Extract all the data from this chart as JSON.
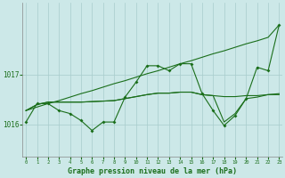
{
  "xlabel": "Graphe pression niveau de la mer (hPa)",
  "background_color": "#cce8e8",
  "line_color": "#1a6e1a",
  "grid_color": "#a8cccc",
  "x_values": [
    0,
    1,
    2,
    3,
    4,
    5,
    6,
    7,
    8,
    9,
    10,
    11,
    12,
    13,
    14,
    15,
    16,
    17,
    18,
    19,
    20,
    21,
    22,
    23
  ],
  "series_main": [
    1016.05,
    1016.42,
    1016.42,
    1016.28,
    1016.22,
    1016.08,
    1015.88,
    1016.05,
    1016.05,
    1016.55,
    1016.85,
    1017.18,
    1017.18,
    1017.08,
    1017.22,
    1017.22,
    1016.62,
    1016.28,
    1015.98,
    1016.18,
    1016.52,
    1017.15,
    1017.08,
    1018.0
  ],
  "series_trend": [
    1016.28,
    1016.35,
    1016.42,
    1016.48,
    1016.55,
    1016.62,
    1016.68,
    1016.75,
    1016.82,
    1016.88,
    1016.95,
    1017.02,
    1017.08,
    1017.15,
    1017.22,
    1017.28,
    1017.35,
    1017.42,
    1017.48,
    1017.55,
    1017.62,
    1017.68,
    1017.75,
    1018.0
  ],
  "series_smooth1": [
    1016.28,
    1016.4,
    1016.45,
    1016.45,
    1016.45,
    1016.45,
    1016.46,
    1016.47,
    1016.48,
    1016.52,
    1016.56,
    1016.6,
    1016.63,
    1016.63,
    1016.65,
    1016.65,
    1016.6,
    1016.58,
    1016.56,
    1016.56,
    1016.58,
    1016.58,
    1016.6,
    1016.6
  ],
  "series_smooth2": [
    1016.28,
    1016.4,
    1016.45,
    1016.45,
    1016.45,
    1016.45,
    1016.46,
    1016.47,
    1016.48,
    1016.52,
    1016.56,
    1016.6,
    1016.63,
    1016.63,
    1016.65,
    1016.65,
    1016.6,
    1016.58,
    1016.05,
    1016.22,
    1016.52,
    1016.55,
    1016.6,
    1016.62
  ],
  "yticks": [
    1016,
    1017
  ],
  "ylim": [
    1015.35,
    1018.45
  ],
  "xlim": [
    -0.3,
    23.3
  ]
}
